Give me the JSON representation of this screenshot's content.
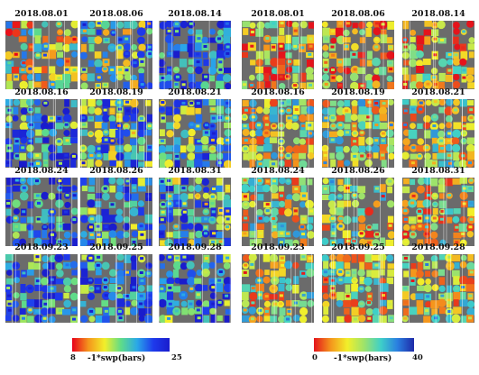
{
  "panels": [
    {
      "colorbar": {
        "label": "-1*swp(bars)",
        "min": 8,
        "max": 25,
        "min_label": "8",
        "max_label": "25",
        "colors": [
          "#e8001a",
          "#f4951c",
          "#f2ef2a",
          "#5fdc88",
          "#2aa8e8",
          "#1e3aec",
          "#1a1ccc"
        ]
      },
      "maps": [
        {
          "date": "2018.08.01",
          "level": 0.38
        },
        {
          "date": "2018.08.06",
          "level": 0.55
        },
        {
          "date": "2018.08.14",
          "level": 0.82
        },
        {
          "date": "2018.08.16",
          "level": 0.72
        },
        {
          "date": "2018.08.19",
          "level": 0.6
        },
        {
          "date": "2018.08.21",
          "level": 0.62
        },
        {
          "date": "2018.08.24",
          "level": 0.78
        },
        {
          "date": "2018.08.26",
          "level": 0.7
        },
        {
          "date": "2018.08.31",
          "level": 0.62
        },
        {
          "date": "2018.09.23",
          "level": 0.72
        },
        {
          "date": "2018.09.25",
          "level": 0.68
        },
        {
          "date": "2018.09.28",
          "level": 0.7
        }
      ]
    },
    {
      "colorbar": {
        "label": "-1*swp(bars)",
        "min": 0,
        "max": 40,
        "min_label": "0",
        "max_label": "40",
        "colors": [
          "#e4141c",
          "#f4951c",
          "#f2ef2a",
          "#9ee36a",
          "#3fd0c8",
          "#2a7fe0",
          "#1e2aa8"
        ]
      },
      "maps": [
        {
          "date": "2018.08.01",
          "level": 0.3
        },
        {
          "date": "2018.08.06",
          "level": 0.25
        },
        {
          "date": "2018.08.14",
          "level": 0.3
        },
        {
          "date": "2018.08.16",
          "level": 0.42
        },
        {
          "date": "2018.08.19",
          "level": 0.44
        },
        {
          "date": "2018.08.21",
          "level": 0.42
        },
        {
          "date": "2018.08.24",
          "level": 0.42
        },
        {
          "date": "2018.08.26",
          "level": 0.4
        },
        {
          "date": "2018.08.31",
          "level": 0.38
        },
        {
          "date": "2018.09.23",
          "level": 0.4
        },
        {
          "date": "2018.09.25",
          "level": 0.38
        },
        {
          "date": "2018.09.28",
          "level": 0.4
        }
      ]
    }
  ]
}
